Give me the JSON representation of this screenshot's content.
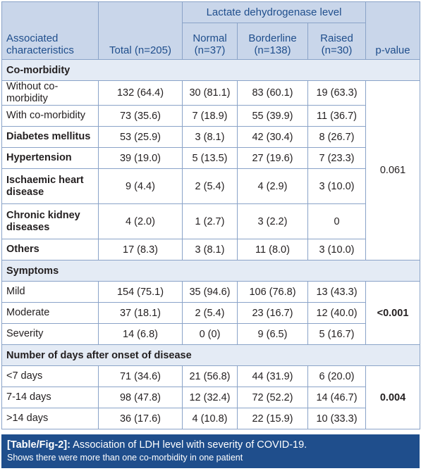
{
  "header": {
    "group_label": "Lactate dehydrogenase level",
    "assoc_label": "Associated characteristics",
    "total_label": "Total (n=205)",
    "normal_label": "Normal (n=37)",
    "borderline_label": "Borderline (n=138)",
    "raised_label": "Raised (n=30)",
    "pvalue_label": "p-value"
  },
  "sections": [
    {
      "title": "Co-morbidity",
      "p_value": "0.061",
      "p_bold": false,
      "rows": [
        {
          "label": "Without co-morbidity",
          "bold": false,
          "total": "132 (64.4)",
          "normal": "30 (81.1)",
          "borderline": "83 (60.1)",
          "raised": "19 (63.3)"
        },
        {
          "label": "With co-morbidity",
          "bold": false,
          "total": "73 (35.6)",
          "normal": "7 (18.9)",
          "borderline": "55 (39.9)",
          "raised": "11 (36.7)"
        },
        {
          "label": "Diabetes mellitus",
          "bold": true,
          "total": "53 (25.9)",
          "normal": "3 (8.1)",
          "borderline": "42 (30.4)",
          "raised": "8 (26.7)"
        },
        {
          "label": "Hypertension",
          "bold": true,
          "total": "39 (19.0)",
          "normal": "5 (13.5)",
          "borderline": "27 (19.6)",
          "raised": "7 (23.3)"
        },
        {
          "label": "Ischaemic heart disease",
          "bold": true,
          "tall": true,
          "total": "9 (4.4)",
          "normal": "2 (5.4)",
          "borderline": "4 (2.9)",
          "raised": "3 (10.0)"
        },
        {
          "label": "Chronic kidney diseases",
          "bold": true,
          "tall": true,
          "total": "4 (2.0)",
          "normal": "1 (2.7)",
          "borderline": "3 (2.2)",
          "raised": "0"
        },
        {
          "label": "Others",
          "bold": true,
          "total": "17 (8.3)",
          "normal": "3 (8.1)",
          "borderline": "11 (8.0)",
          "raised": "3 (10.0)"
        }
      ]
    },
    {
      "title": "Symptoms",
      "p_value": "<0.001",
      "p_bold": true,
      "rows": [
        {
          "label": "Mild",
          "bold": false,
          "total": "154 (75.1)",
          "normal": "35 (94.6)",
          "borderline": "106 (76.8)",
          "raised": "13 (43.3)"
        },
        {
          "label": "Moderate",
          "bold": false,
          "total": "37 (18.1)",
          "normal": "2 (5.4)",
          "borderline": "23 (16.7)",
          "raised": "12 (40.0)"
        },
        {
          "label": "Severity",
          "bold": false,
          "total": "14 (6.8)",
          "normal": "0 (0)",
          "borderline": "9 (6.5)",
          "raised": "5 (16.7)"
        }
      ]
    },
    {
      "title": "Number of days after onset of disease",
      "p_value": "0.004",
      "p_bold": true,
      "rows": [
        {
          "label": "<7 days",
          "bold": false,
          "total": "71 (34.6)",
          "normal": "21 (56.8)",
          "borderline": "44 (31.9)",
          "raised": "6 (20.0)"
        },
        {
          "label": "7-14 days",
          "bold": false,
          "total": "98 (47.8)",
          "normal": "12 (32.4)",
          "borderline": "72 (52.2)",
          "raised": "14 (46.7)"
        },
        {
          "label": ">14 days",
          "bold": false,
          "total": "36 (17.6)",
          "normal": "4 (10.8)",
          "borderline": "22 (15.9)",
          "raised": "10 (33.3)"
        }
      ]
    }
  ],
  "caption": {
    "tag": "[Table/Fig-2]:",
    "title": " Association of LDH level with severity of COVID-19.",
    "note": "Shows there were more than one co-morbidity in one patient"
  },
  "colors": {
    "header_bg": "#c9d6ea",
    "header_text": "#1f4e8c",
    "section_bg": "#e4ebf5",
    "border": "#8aa3c8",
    "caption_bg": "#1f4e8c"
  }
}
